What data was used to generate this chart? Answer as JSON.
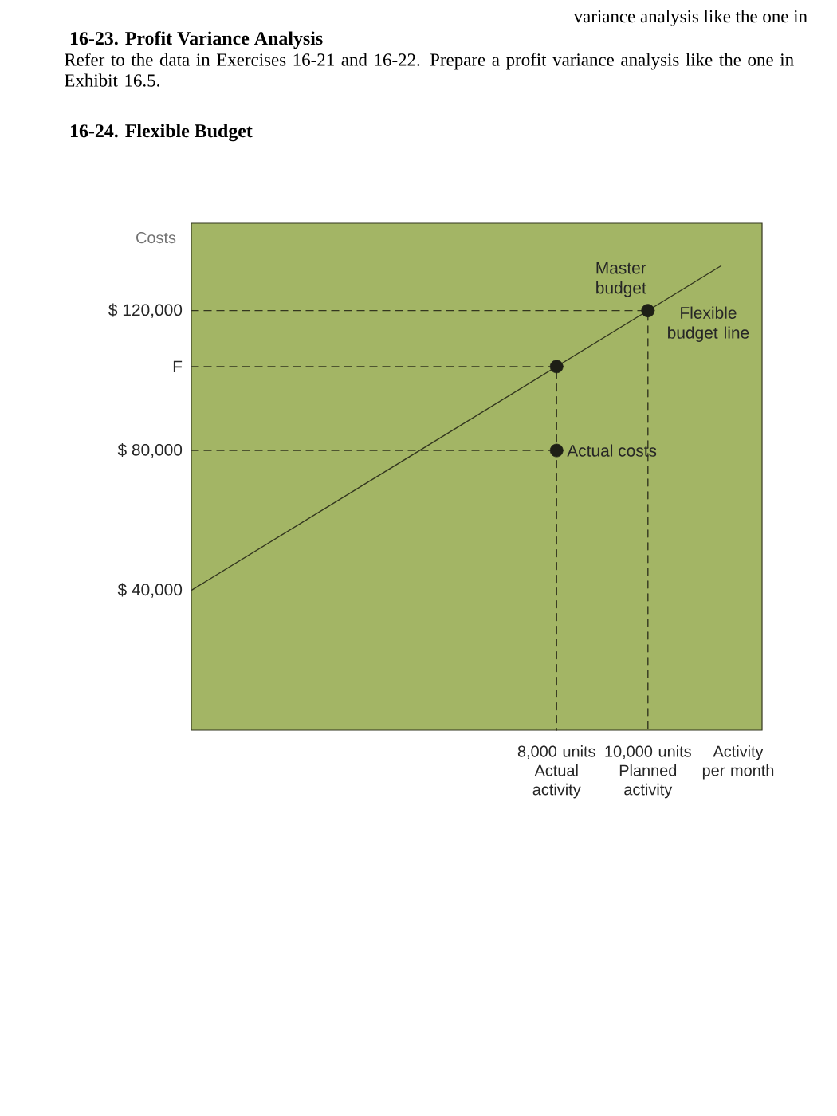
{
  "chart_data": {
    "type": "line",
    "title": "16-24. Flexible Budget",
    "xlabel": "Activity per month",
    "ylabel": "Costs",
    "xlim": [
      0,
      12500
    ],
    "xticks": [
      {
        "value": 8000,
        "label": "8,000 units Actual activity"
      },
      {
        "value": 10000,
        "label": "10,000 units Planned activity"
      }
    ],
    "ylim": [
      0,
      145000
    ],
    "yticks": [
      {
        "value": 40000,
        "label": "$ 40,000"
      },
      {
        "value": 80000,
        "label": "$ 80,000"
      },
      {
        "value": 104000,
        "label": "F"
      },
      {
        "value": 120000,
        "label": "$ 120,000"
      }
    ],
    "series": [
      {
        "line_style": "dashed",
        "color": "#33361f",
        "x": [
          0,
          10000,
          10000
        ],
        "values": [
          120000,
          120000,
          0
        ]
      },
      {
        "line_style": "dashed",
        "color": "#33361f",
        "x": [
          0,
          8000,
          8000
        ],
        "values": [
          104000,
          104000,
          0
        ]
      },
      {
        "line_style": "dashed",
        "color": "#33361f",
        "x": [
          0,
          8000
        ],
        "values": [
          80000,
          80000
        ]
      },
      {
        "name": "Flexible budget line",
        "color": "#33361f",
        "x": [
          0,
          11600
        ],
        "values": [
          40000,
          132800
        ]
      },
      {
        "type": "scatter",
        "marker": "circle",
        "color": "#1e1f16",
        "x": [
          8000,
          8000,
          10000
        ],
        "values": [
          104000,
          80000,
          120000
        ]
      }
    ],
    "annotations": [
      {
        "text": "Master budget",
        "x": 10000,
        "y": 120000
      },
      {
        "text": "Actual costs",
        "x": 8000,
        "y": 80000
      },
      "variance analysis like the one in",
      "16-23. Profit Variance Analysis",
      "Refer to the data in Exercises 16-21 and 16-22. Prepare a profit variance analysis like the one in Exhibit 16.5."
    ]
  }
}
